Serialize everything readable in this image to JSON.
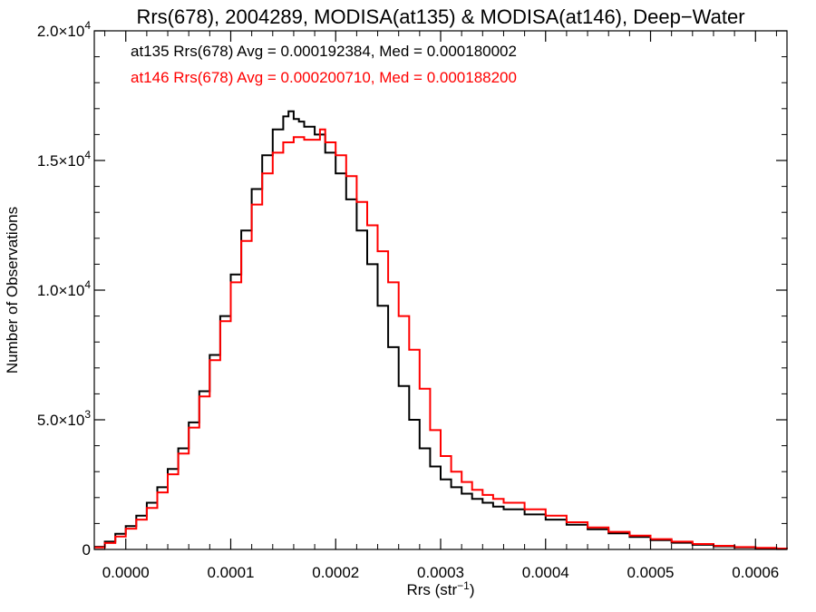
{
  "chart_data": {
    "type": "line",
    "title": "Rrs(678), 2004289, MODISA(at135) & MODISA(at146), Deep−Water",
    "xlabel": "Rrs (str",
    "xlabel_sup": "−1",
    "xlabel_close": ")",
    "ylabel": "Number of Observations",
    "xlim": [
      -3e-05,
      0.00063
    ],
    "ylim": [
      0,
      20000
    ],
    "grid": false,
    "x_ticks": [
      {
        "value": 0.0,
        "label": "0.0000"
      },
      {
        "value": 0.0001,
        "label": "0.0001"
      },
      {
        "value": 0.0002,
        "label": "0.0002"
      },
      {
        "value": 0.0003,
        "label": "0.0003"
      },
      {
        "value": 0.0004,
        "label": "0.0004"
      },
      {
        "value": 0.0005,
        "label": "0.0005"
      },
      {
        "value": 0.0006,
        "label": "0.0006"
      }
    ],
    "y_ticks": [
      {
        "value": 0,
        "mant": "0",
        "exp": ""
      },
      {
        "value": 5000,
        "mant": "5.0×10",
        "exp": "3"
      },
      {
        "value": 10000,
        "mant": "1.0×10",
        "exp": "4"
      },
      {
        "value": 15000,
        "mant": "1.5×10",
        "exp": "4"
      },
      {
        "value": 20000,
        "mant": "2.0×10",
        "exp": "4"
      }
    ],
    "annotations": [
      {
        "text": "at135 Rrs(678) Avg = 0.000192384, Med = 0.000180002",
        "color": "#000000"
      },
      {
        "text": "at146 Rrs(678) Avg = 0.000200710, Med = 0.000188200",
        "color": "#ff0000"
      }
    ],
    "series": [
      {
        "color": "#000000",
        "x": [
          -3e-05,
          -2e-05,
          -1e-05,
          0.0,
          1e-05,
          2e-05,
          3e-05,
          4e-05,
          5e-05,
          6e-05,
          7e-05,
          8e-05,
          9e-05,
          0.0001,
          0.00011,
          0.00012,
          0.00013,
          0.00014,
          0.00015,
          0.000155,
          0.00016,
          0.000165,
          0.00017,
          0.00018,
          0.00019,
          0.0002,
          0.00021,
          0.00022,
          0.00023,
          0.00024,
          0.00025,
          0.00026,
          0.00027,
          0.00028,
          0.00029,
          0.0003,
          0.00031,
          0.00032,
          0.00033,
          0.00034,
          0.00035,
          0.00036,
          0.00038,
          0.0004,
          0.00042,
          0.00044,
          0.00046,
          0.00048,
          0.0005,
          0.00052,
          0.00054,
          0.00056,
          0.00058,
          0.0006,
          0.00062,
          0.00063
        ],
        "y": [
          100,
          300,
          600,
          900,
          1300,
          1800,
          2400,
          3100,
          3900,
          4900,
          6100,
          7500,
          9000,
          10600,
          12300,
          13900,
          15200,
          16200,
          16700,
          16900,
          16600,
          16500,
          16300,
          16000,
          15300,
          14500,
          13500,
          12300,
          11000,
          9400,
          7800,
          6300,
          5000,
          3900,
          3200,
          2700,
          2400,
          2150,
          1950,
          1800,
          1650,
          1550,
          1350,
          1150,
          950,
          780,
          620,
          480,
          360,
          260,
          180,
          120,
          80,
          50,
          30,
          20
        ]
      },
      {
        "color": "#ff0000",
        "x": [
          -3e-05,
          -2e-05,
          -1e-05,
          0.0,
          1e-05,
          2e-05,
          3e-05,
          4e-05,
          5e-05,
          6e-05,
          7e-05,
          8e-05,
          9e-05,
          0.0001,
          0.00011,
          0.00012,
          0.00013,
          0.00014,
          0.00015,
          0.00016,
          0.00017,
          0.00018,
          0.000185,
          0.00019,
          0.0002,
          0.00021,
          0.00022,
          0.00023,
          0.00024,
          0.00025,
          0.00026,
          0.00027,
          0.00028,
          0.00029,
          0.0003,
          0.00031,
          0.00032,
          0.00033,
          0.00034,
          0.00035,
          0.00036,
          0.00038,
          0.0004,
          0.00042,
          0.00044,
          0.00046,
          0.00048,
          0.0005,
          0.00052,
          0.00054,
          0.00056,
          0.00058,
          0.0006,
          0.00062,
          0.00063
        ],
        "y": [
          80,
          250,
          500,
          800,
          1150,
          1600,
          2200,
          2900,
          3700,
          4700,
          5900,
          7300,
          8800,
          10300,
          11900,
          13300,
          14500,
          15300,
          15700,
          15900,
          15800,
          15800,
          16200,
          15700,
          15200,
          14400,
          13400,
          12500,
          11500,
          10300,
          9000,
          7700,
          6200,
          4600,
          3600,
          3000,
          2600,
          2300,
          2100,
          1950,
          1800,
          1550,
          1300,
          1050,
          850,
          680,
          530,
          400,
          300,
          210,
          140,
          90,
          60,
          35,
          25
        ]
      }
    ]
  }
}
